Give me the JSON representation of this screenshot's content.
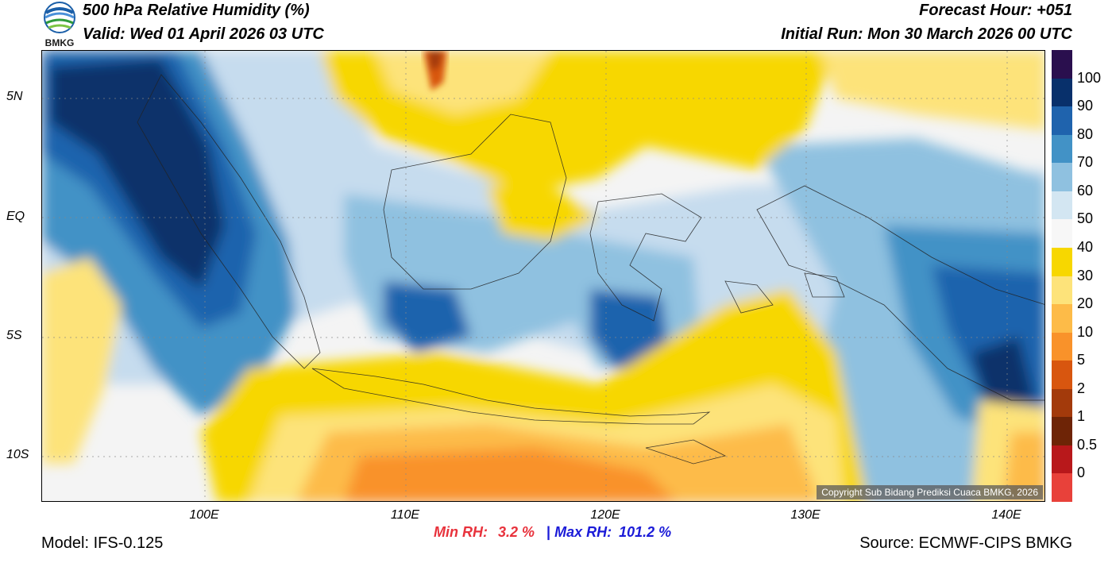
{
  "header": {
    "title": "500 hPa Relative Humidity (%)",
    "valid": "Valid: Wed 01 April 2026 03 UTC",
    "forecast_hour": "Forecast Hour: +051",
    "initial_run": "Initial Run: Mon 30 March 2026 00 UTC",
    "logo_text": "BMKG"
  },
  "map": {
    "lat_labels": [
      "5N",
      "EQ",
      "5S",
      "10S"
    ],
    "lon_labels": [
      "100E",
      "110E",
      "120E",
      "130E",
      "140E"
    ],
    "copyright": "Copyright Sub Bidang Prediksi Cuaca BMKG, 2026"
  },
  "colorbar": {
    "labels": [
      "100",
      "90",
      "80",
      "70",
      "60",
      "50",
      "40",
      "30",
      "20",
      "10",
      "5",
      "2",
      "1",
      "0.5",
      "0"
    ],
    "colors": [
      "#2a0f4e",
      "#08306b",
      "#1f63ad",
      "#4292c6",
      "#8fc1e0",
      "#d3e6f2",
      "#f7f7f7",
      "#f7d700",
      "#fde37a",
      "#fdbb48",
      "#f9922a",
      "#d8560f",
      "#a33a0b",
      "#6e2406",
      "#b8181b",
      "#e8413a"
    ]
  },
  "stats": {
    "min_label": "Min RH:",
    "min_value": "3.2 %",
    "separator": "|",
    "max_label": "Max RH:",
    "max_value": "101.2 %"
  },
  "footer": {
    "model": "Model: IFS-0.125",
    "source": "Source: ECMWF-CIPS BMKG"
  }
}
